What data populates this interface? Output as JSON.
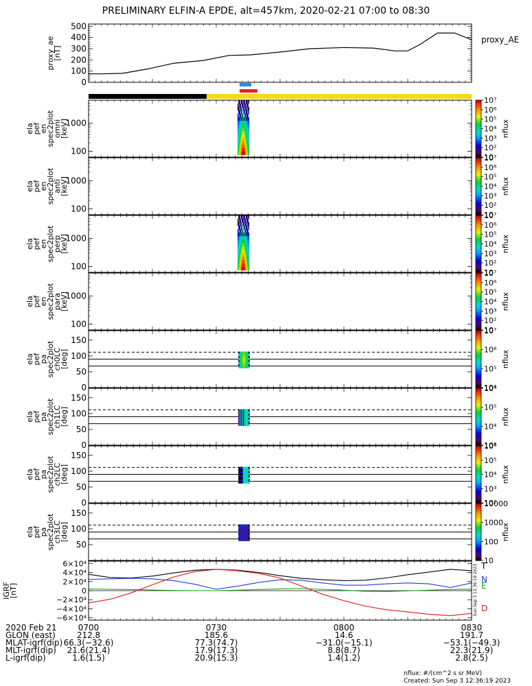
{
  "title": "PRELIMINARY ELFIN-A EPDE, alt=457km, 2020-02-21 07:00 to 08:30",
  "colors": {
    "black": "#000000",
    "yellow": "#f7d81a",
    "blue_bar": "#1f8ff0",
    "red_bar": "#ee1c1c",
    "north": "#1a3fd0",
    "east": "#1aa81a",
    "down": "#d81a1a",
    "total": "#000000"
  },
  "chart_data": [
    {
      "type": "line",
      "name": "proxy_ae",
      "ylabel": "proxy_ae\n[nT]",
      "ylim": [
        0,
        520
      ],
      "yticks": [
        0,
        100,
        200,
        300,
        400,
        500
      ],
      "legend": "proxy_AE",
      "x_minutes": [
        0,
        3,
        8,
        14,
        20,
        27,
        33,
        38,
        45,
        52,
        60,
        67,
        72,
        75,
        78,
        82,
        86,
        90
      ],
      "values": [
        75,
        75,
        80,
        120,
        170,
        195,
        240,
        245,
        270,
        300,
        310,
        305,
        280,
        280,
        340,
        440,
        440,
        380
      ]
    },
    {
      "type": "heatmap",
      "name": "spec_omni",
      "ylabel": "ela\npef\nen\nspec2plot\nomni\n[keV]",
      "yscale": "log",
      "yticks": [
        100,
        1000
      ],
      "x_range_min": [
        35.0,
        37.7
      ],
      "color_label": "nflux",
      "color_ticks": [
        "10",
        "10²",
        "10³",
        "10⁴",
        "10⁵",
        "10⁶",
        "10⁷"
      ],
      "color_range": [
        1,
        7
      ]
    },
    {
      "type": "heatmap",
      "name": "spec_anti",
      "ylabel": "ela\npef\nen\nspec2plot\nanti\n[keV]",
      "yscale": "log",
      "yticks": [
        100,
        1000
      ],
      "x_range_min": null,
      "color_label": "nflux",
      "color_ticks": [
        "10",
        "10²",
        "10³",
        "10⁴",
        "10⁵",
        "10⁶",
        "10⁷"
      ],
      "color_range": [
        1,
        7
      ]
    },
    {
      "type": "heatmap",
      "name": "spec_perp",
      "ylabel": "ela\npef\nen\nspec2plot\nperp\n[keV]",
      "yscale": "log",
      "yticks": [
        100,
        1000
      ],
      "x_range_min": [
        35.0,
        37.7
      ],
      "color_label": "nflux",
      "color_ticks": [
        "10",
        "10²",
        "10³",
        "10⁴",
        "10⁵",
        "10⁶",
        "10⁷"
      ],
      "color_range": [
        1,
        7
      ]
    },
    {
      "type": "heatmap",
      "name": "spec_para",
      "ylabel": "ela\npef\nen\nspec2plot\npara\n[keV]",
      "yscale": "log",
      "yticks": [
        100,
        1000
      ],
      "x_range_min": null,
      "color_label": "nflux",
      "color_ticks": [
        "10",
        "10²",
        "10³",
        "10⁴",
        "10⁵",
        "10⁶",
        "10⁷"
      ],
      "color_range": [
        1,
        7
      ]
    },
    {
      "type": "heatmap",
      "name": "pa_ch0",
      "ylabel": "ela\npef\npa\nspec2plot\nch0LC\n[deg]",
      "ylim": [
        0,
        180
      ],
      "yticks": [
        0,
        50,
        100,
        150
      ],
      "ref_lines": [
        68,
        90
      ],
      "dashed_line": 112,
      "x_range_min": [
        35.2,
        37.8
      ],
      "color_label": "nflux",
      "color_ticks": [
        "10⁴",
        "10⁵",
        "10⁶",
        "10⁷"
      ],
      "color_range": [
        3.5,
        7
      ]
    },
    {
      "type": "heatmap",
      "name": "pa_ch1",
      "ylabel": "ela\npef\npa\nspec2plot\nch1LC\n[deg]",
      "ylim": [
        0,
        180
      ],
      "yticks": [
        0,
        50,
        100,
        150
      ],
      "ref_lines": [
        68,
        90
      ],
      "dashed_line": 112,
      "x_range_min": [
        35.2,
        37.8
      ],
      "color_label": "nflux",
      "color_ticks": [
        "10³",
        "10⁴",
        "10⁵",
        "10⁶"
      ],
      "color_range": [
        2.5,
        6.3
      ]
    },
    {
      "type": "heatmap",
      "name": "pa_ch2",
      "ylabel": "ela\npef\npa\nspec2plot\nch2LC\n[deg]",
      "ylim": [
        0,
        180
      ],
      "yticks": [
        0,
        50,
        100,
        150
      ],
      "ref_lines": [
        68,
        90
      ],
      "dashed_line": 112,
      "x_range_min": [
        35.2,
        37.8
      ],
      "color_label": "nflux",
      "color_ticks": [
        "10²",
        "10³",
        "10⁴",
        "10⁵",
        "10⁶"
      ],
      "color_range": [
        1.5,
        6.3
      ]
    },
    {
      "type": "heatmap",
      "name": "pa_ch3",
      "ylabel": "ela\npef\npa\nspec2plot\nch3LC\n[deg]",
      "ylim": [
        0,
        180
      ],
      "yticks": [
        50,
        100,
        150
      ],
      "ref_lines": [
        68,
        90
      ],
      "dashed_line": 112,
      "x_range_min": [
        35.2,
        37.8
      ],
      "color_label": "nflux",
      "color_ticks": [
        "10",
        "100",
        "1000",
        "10000"
      ],
      "color_range": [
        1,
        4.3
      ]
    },
    {
      "type": "line",
      "name": "igrf",
      "ylabel": "IGRF\n[nT]",
      "ylim": [
        -65000,
        65000
      ],
      "ytick_labels": [
        "6×10⁴",
        "4×10⁴",
        "2×10⁴",
        "0",
        "−2×10⁴",
        "−4×10⁴",
        "−6×10⁴"
      ],
      "yticks": [
        60000,
        40000,
        20000,
        0,
        -20000,
        -40000,
        -60000
      ],
      "legend": [
        "T",
        "N",
        "E",
        "D"
      ],
      "side_note": "Sun Sep  3 12:36:19 2023",
      "x_minutes": [
        0,
        5,
        10,
        15,
        20,
        25,
        30,
        35,
        40,
        45,
        50,
        55,
        60,
        65,
        70,
        75,
        80,
        85,
        90
      ],
      "series": [
        {
          "name": "T",
          "values": [
            36000,
            29000,
            28000,
            32000,
            39000,
            45000,
            47000,
            45000,
            40000,
            33000,
            27000,
            24000,
            22000,
            23000,
            28000,
            35000,
            41000,
            47000,
            44000
          ]
        },
        {
          "name": "N",
          "values": [
            25000,
            26000,
            27000,
            26000,
            22000,
            14000,
            3000,
            10000,
            18000,
            24000,
            23000,
            17000,
            12000,
            12000,
            15000,
            17000,
            15000,
            7000,
            17000
          ]
        },
        {
          "name": "E",
          "values": [
            4000,
            3000,
            2500,
            1500,
            500,
            0,
            0,
            1000,
            2500,
            4000,
            4500,
            3000,
            1000,
            -1500,
            -2000,
            -500,
            1000,
            2500,
            3500
          ]
        },
        {
          "name": "D",
          "values": [
            -27000,
            -19000,
            -5000,
            13000,
            30000,
            42000,
            47000,
            44000,
            38000,
            28000,
            10000,
            -8000,
            -22000,
            -34000,
            -42000,
            -47000,
            -52000,
            -55000,
            -50000
          ]
        }
      ]
    }
  ],
  "x_axis": {
    "tick_minutes": [
      0,
      30,
      60,
      90
    ],
    "tick_labels": [
      "0700",
      "0730",
      "0800",
      "0830"
    ]
  },
  "orbit_labels": {
    "date": "2020 Feb 21",
    "rows": [
      "GLON (east)",
      "MLAT-igrf(dip)",
      "MLT-igrf(dip)",
      "L-igrf(dip)"
    ],
    "glon": [
      "212.8",
      "185.6",
      "14.6",
      "191.7"
    ],
    "mlat": [
      "66.3(−32.6)",
      "77.3(74.7)",
      "−31.0(−15.1)",
      "−53.1(−49.3)"
    ],
    "mlt": [
      "21.6(21.4)",
      "17.9(17.3)",
      "8.8(8.7)",
      "22.3(21.9)"
    ],
    "lshell": [
      "1.6(1.5)",
      "20.9(15.3)",
      "1.4(1.2)",
      "2.8(2.5)"
    ]
  },
  "footer": {
    "units": "nflux: #/(cm^2 s sr MeV)",
    "created": "Created: Sun Sep  3 12:36:19 2023"
  }
}
